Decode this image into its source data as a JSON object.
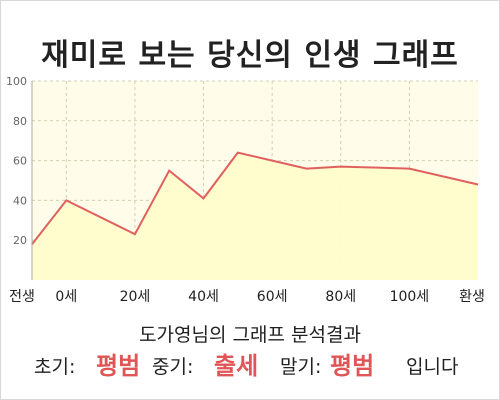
{
  "title": "재미로 보는 당신의 인생 그래프",
  "chart_data": {
    "type": "area",
    "x_labels": [
      "전생",
      "0세",
      "20세",
      "40세",
      "60세",
      "80세",
      "100세",
      "환생"
    ],
    "ylim": [
      0,
      100
    ],
    "y_ticks": [
      20,
      40,
      60,
      80,
      100
    ],
    "points": [
      {
        "x": -10,
        "y": 18
      },
      {
        "x": 0,
        "y": 40
      },
      {
        "x": 20,
        "y": 23
      },
      {
        "x": 30,
        "y": 55
      },
      {
        "x": 40,
        "y": 41
      },
      {
        "x": 50,
        "y": 64
      },
      {
        "x": 60,
        "y": 60
      },
      {
        "x": 70,
        "y": 56
      },
      {
        "x": 80,
        "y": 57
      },
      {
        "x": 100,
        "y": 56
      },
      {
        "x": 120,
        "y": 48
      }
    ],
    "grid": true,
    "colors": {
      "line": "#e06060",
      "fill": "#fffccc",
      "background": "#fffdea",
      "grid": "#d0d0b0"
    }
  },
  "result": {
    "heading": "도가영님의 그래프 분석결과",
    "early_label": "초기:",
    "early_value": "평범",
    "mid_label": "중기:",
    "mid_value": "출세",
    "late_label": "말기:",
    "late_value": "평범",
    "suffix": "입니다"
  }
}
